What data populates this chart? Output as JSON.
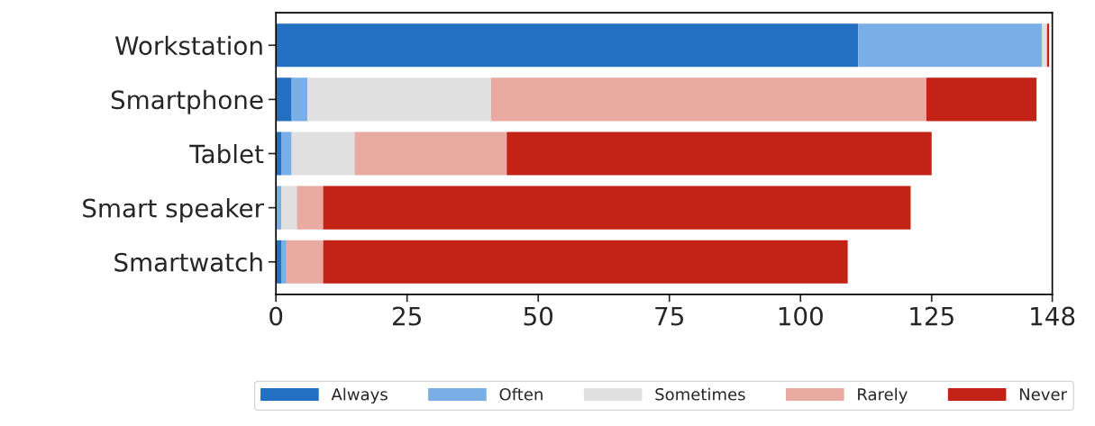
{
  "chart_data": {
    "type": "bar",
    "orientation": "horizontal",
    "stacked": true,
    "categories": [
      "Workstation",
      "Smartphone",
      "Tablet",
      "Smart speaker",
      "Smartwatch"
    ],
    "series": [
      {
        "name": "Always",
        "color": "#236fc2",
        "values": [
          111,
          3,
          1,
          0,
          1
        ]
      },
      {
        "name": "Often",
        "color": "#7aaee6",
        "values": [
          35,
          3,
          2,
          1,
          1
        ]
      },
      {
        "name": "Sometimes",
        "color": "#e0e0e0",
        "values": [
          1,
          35,
          12,
          3,
          0
        ]
      },
      {
        "name": "Rarely",
        "color": "#e8aaa1",
        "values": [
          0,
          83,
          29,
          5,
          7
        ]
      },
      {
        "name": "Never",
        "color": "#c22316",
        "values": [
          0.4,
          21,
          81,
          112,
          100
        ]
      }
    ],
    "xlim": [
      0,
      148
    ],
    "xticks": [
      0,
      25,
      50,
      75,
      100,
      125,
      148
    ],
    "grid": false,
    "legend": "bottom"
  }
}
